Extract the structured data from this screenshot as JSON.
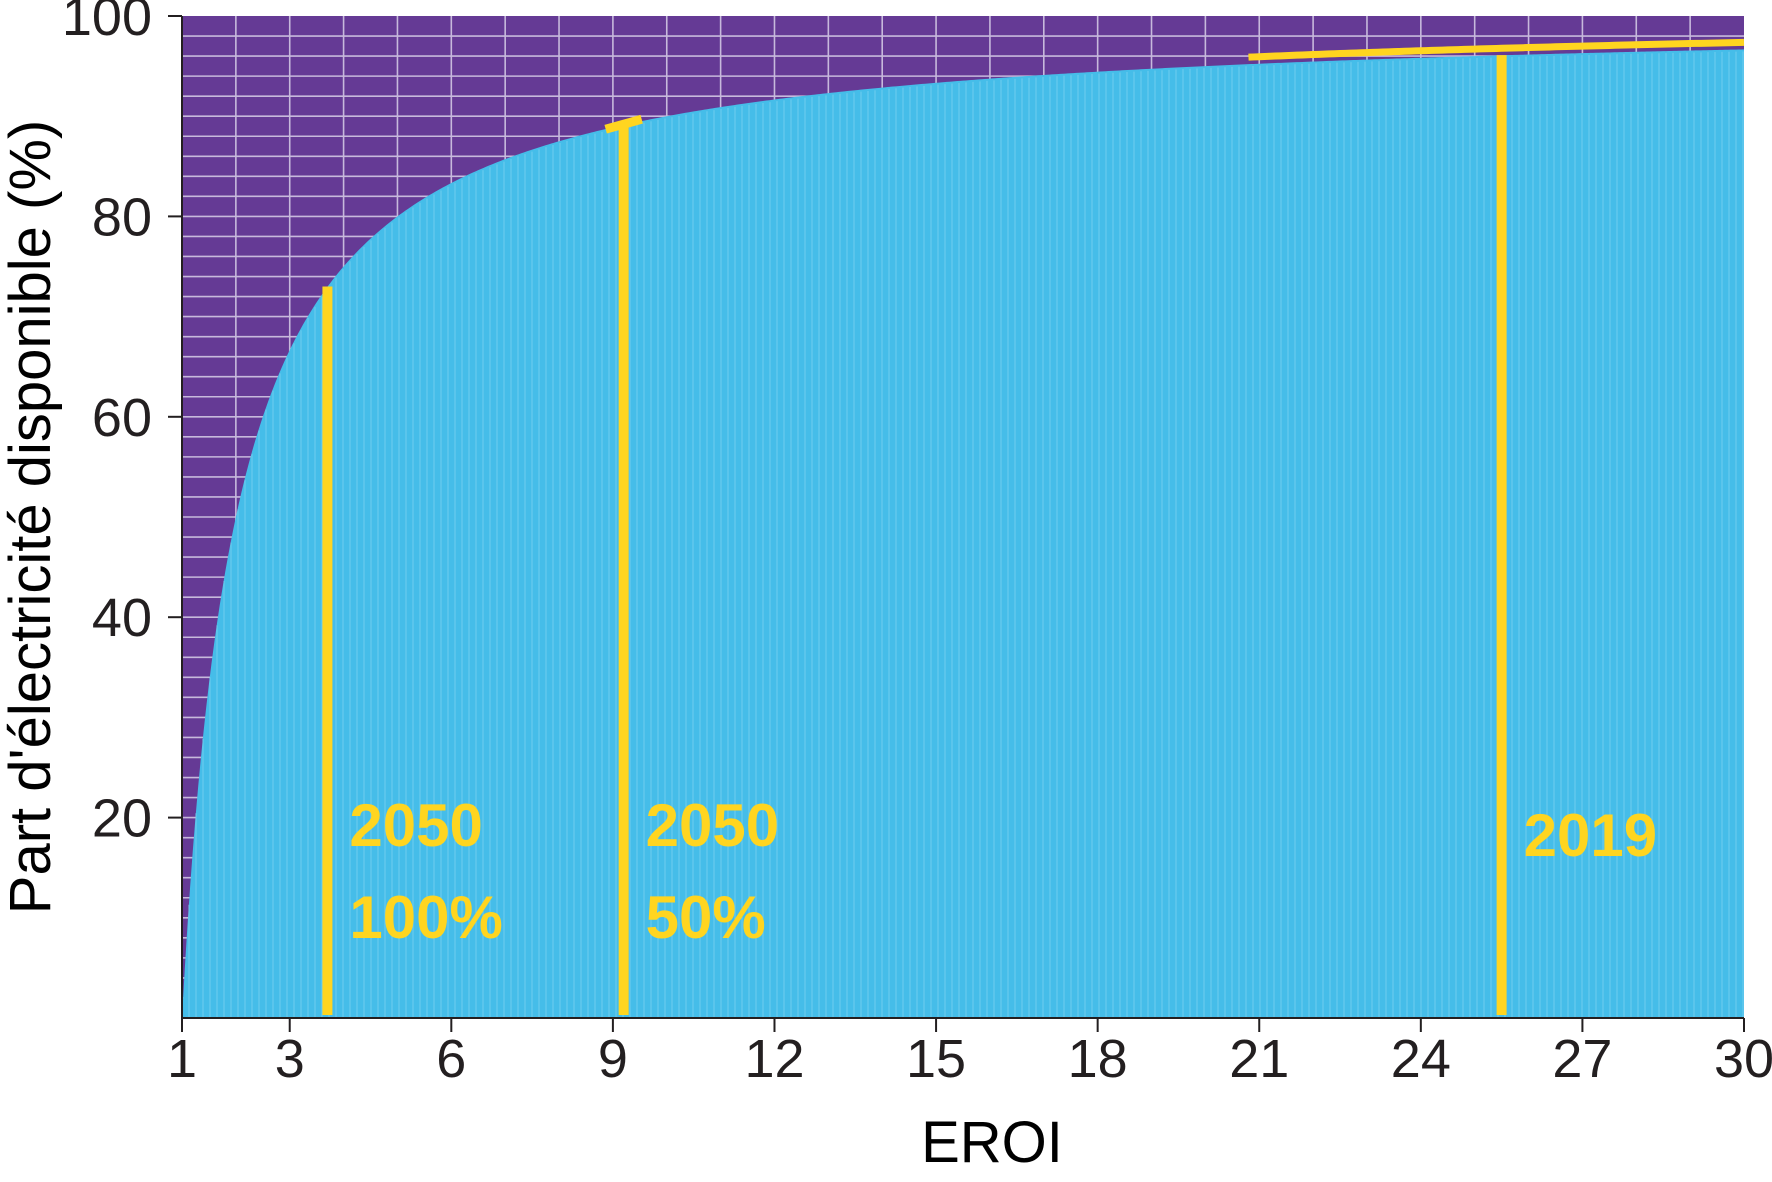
{
  "chart_data": {
    "type": "area",
    "title": "",
    "xlabel": "EROI",
    "ylabel": "Part d'électricité disponible (%)",
    "xlim": [
      1,
      30
    ],
    "ylim": [
      0,
      100
    ],
    "x_ticks": [
      "1",
      "3",
      "6",
      "9",
      "12",
      "15",
      "18",
      "21",
      "24",
      "27",
      "30"
    ],
    "y_ticks": [
      "20",
      "40",
      "60",
      "80",
      "100"
    ],
    "grid": true,
    "series": [
      {
        "x": [
          1,
          1.25,
          1.5,
          2,
          2.5,
          3,
          3.5,
          4,
          5,
          6,
          7,
          8,
          9,
          10,
          12,
          15,
          18,
          21,
          24,
          27,
          30
        ],
        "values": [
          0,
          20,
          33.3,
          50,
          60,
          66.7,
          71.4,
          75,
          80,
          83.3,
          85.7,
          87.5,
          88.9,
          90,
          91.7,
          93.3,
          94.4,
          95.2,
          95.8,
          96.3,
          96.7
        ]
      }
    ],
    "annotations": [
      {
        "x": 3.7,
        "y": 73,
        "line1": "2050",
        "line2": "100%"
      },
      {
        "x": 9.2,
        "y": 89.1,
        "line1": "2050",
        "line2": "50%"
      },
      {
        "x": 25.5,
        "y": 96.1,
        "line1": "2019",
        "line2": ""
      }
    ],
    "colors": {
      "background": "#653a95",
      "fill": "#45bde9",
      "grid": "#c7b9dc",
      "annotation": "#ffd520"
    }
  }
}
